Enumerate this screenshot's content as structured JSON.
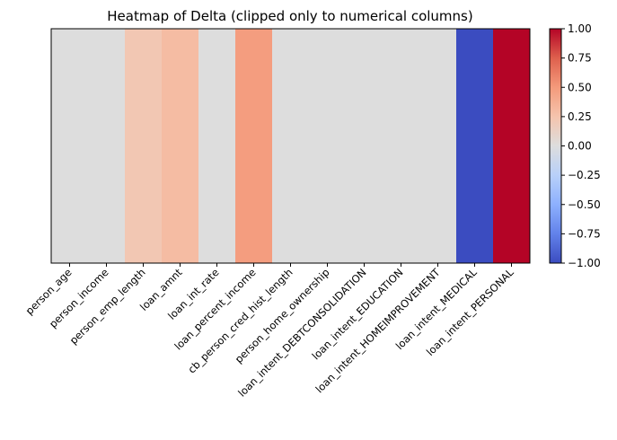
{
  "chart_data": {
    "type": "heatmap",
    "title": "Heatmap of Delta (clipped only to numerical columns)",
    "xlabel": "",
    "ylabel": "",
    "colormap": "coolwarm",
    "categories": [
      "person_age",
      "person_income",
      "person_emp_length",
      "loan_amnt",
      "loan_int_rate",
      "loan_percent_income",
      "cb_person_cred_hist_length",
      "person_home_ownership",
      "loan_intent_DEBTCONSOLIDATION",
      "loan_intent_EDUCATION",
      "loan_intent_HOMEIMPROVEMENT",
      "loan_intent_MEDICAL",
      "loan_intent_PERSONAL"
    ],
    "values": [
      0.0,
      0.0,
      0.22,
      0.3,
      0.0,
      0.48,
      0.0,
      0.0,
      0.0,
      0.0,
      0.0,
      -1.0,
      1.0
    ],
    "colorbar": {
      "range": [
        -1.0,
        1.0
      ],
      "ticks": [
        -1.0,
        -0.75,
        -0.5,
        -0.25,
        0.0,
        0.25,
        0.5,
        0.75,
        1.0
      ],
      "tick_labels": [
        "−1.00",
        "−0.75",
        "−0.50",
        "−0.25",
        "0.00",
        "0.25",
        "0.50",
        "0.75",
        "1.00"
      ]
    },
    "grid": false,
    "y_ticks": false
  }
}
